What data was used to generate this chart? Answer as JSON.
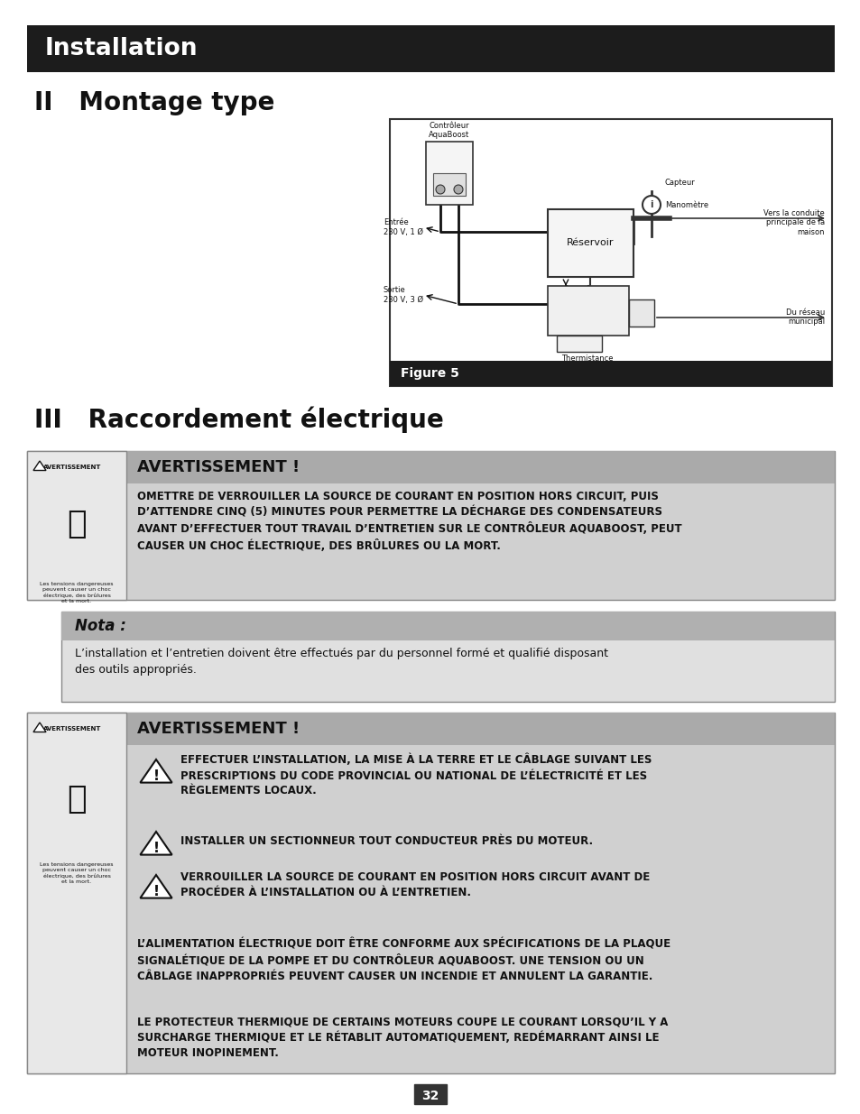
{
  "page_bg": "#ffffff",
  "header_bg": "#1c1c1c",
  "header_text": "Installation",
  "header_text_color": "#ffffff",
  "section2_title": "II   Montage type",
  "section3_title": "III   Raccordement électrique",
  "warning1_title": "AVERTISSEMENT !",
  "warning1_body": "OMETTRE DE VERROUILLER LA SOURCE DE COURANT EN POSITION HORS CIRCUIT, PUIS\nD’ATTENDRE CINQ (5) MINUTES POUR PERMETTRE LA DÉCHARGE DES CONDENSATEURS\nAVANT D’EFFECTUER TOUT TRAVAIL D’ENTRETIEN SUR LE CONTRÔLEUR AQUABOOST, PEUT\nCAUSER UN CHOC ÉLECTRIQUE, DES BRÛLURES OU LA MORT.",
  "nota_title": "Nota :",
  "nota_body": "L’installation et l’entretien doivent être effectués par du personnel formé et qualifié disposant\ndes outils appropriés.",
  "warning2_title": "AVERTISSEMENT !",
  "warning2_bullet1": "EFFECTUER L’INSTALLATION, LA MISE À LA TERRE ET LE CÂBLAGE SUIVANT LES\nPRESCRIPTIONS DU CODE PROVINCIAL OU NATIONAL DE L’ÉLECTRICITÉ ET LES\nRÈGLEMENTS LOCAUX.",
  "warning2_bullet2": "INSTALLER UN SECTIONNEUR TOUT CONDUCTEUR PRÈS DU MOTEUR.",
  "warning2_bullet3": "VERROUILLER LA SOURCE DE COURANT EN POSITION HORS CIRCUIT AVANT DE\nPROCÉDER À L’INSTALLATION OU À L’ENTRETIEN.",
  "warning2_para1": "L’ALIMENTATION ÉLECTRIQUE DOIT ÊTRE CONFORME AUX SPÉCIFICATIONS DE LA PLAQUE\nSIGNALÉTIQUE DE LA POMPE ET DU CONTRÔLEUR AQUABOOST. UNE TENSION OU UN\nCÂBLAGE INAPPROPRIÉS PEUVENT CAUSER UN INCENDIE ET ANNULENT LA GARANTIE.",
  "warning2_para2": "LE PROTECTEUR THERMIQUE DE CERTAINS MOTEURS COUPE LE COURANT LORSQU’IL Y A\nSURCHARGE THERMIQUE ET LE RÉTABLIT AUTOMATIQUEMENT, REDÉMARRANT AINSI LE\nMOTEUR INOPINEMENT.",
  "page_number": "32",
  "warning_header_bg": "#aaaaaa",
  "warning_body_bg": "#d0d0d0",
  "nota_header_bg": "#b0b0b0",
  "nota_body_bg": "#e0e0e0",
  "icon_area_bg": "#e8e8e8"
}
